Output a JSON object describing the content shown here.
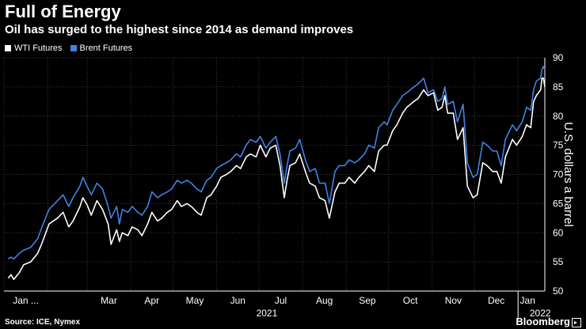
{
  "chart_data": {
    "type": "line",
    "title": "Full of Energy",
    "subtitle": "Oil has surged to the highest since 2014 as demand improves",
    "ylabel": "U.S. dollars a barrel",
    "ylim": [
      50,
      90
    ],
    "y_ticks": [
      "50",
      "55",
      "60",
      "65",
      "70",
      "75",
      "80",
      "85",
      "90"
    ],
    "xlim": [
      "2021-01-01",
      "2022-01-20"
    ],
    "x_ticks": [
      {
        "date": "2021-01-01",
        "label": "Jan ..."
      },
      {
        "date": "2021-02-01",
        "label": "Feb"
      },
      {
        "date": "2021-03-01",
        "label": "Mar"
      },
      {
        "date": "2021-04-01",
        "label": "Apr"
      },
      {
        "date": "2021-05-01",
        "label": "May"
      },
      {
        "date": "2021-06-01",
        "label": "Jun"
      },
      {
        "date": "2021-07-01",
        "label": "Jul"
      },
      {
        "date": "2021-08-01",
        "label": "Aug"
      },
      {
        "date": "2021-09-01",
        "label": "Sep"
      },
      {
        "date": "2021-10-01",
        "label": "Oct"
      },
      {
        "date": "2021-11-01",
        "label": "Nov"
      },
      {
        "date": "2021-12-01",
        "label": "Dec"
      },
      {
        "date": "2022-01-01",
        "label": "Jan"
      }
    ],
    "year_labels": [
      {
        "date": "2021-07-01",
        "label": "2021"
      },
      {
        "date": "2022-01-01",
        "label": "2022"
      }
    ],
    "grid": true,
    "legend_position": "top-left",
    "series": [
      {
        "name": "WTI Futures",
        "color": "#ffffff",
        "points": [
          [
            "2021-01-04",
            52.2
          ],
          [
            "2021-01-06",
            52.8
          ],
          [
            "2021-01-08",
            52.0
          ],
          [
            "2021-01-12",
            53.2
          ],
          [
            "2021-01-15",
            54.5
          ],
          [
            "2021-01-20",
            55.0
          ],
          [
            "2021-01-25",
            56.5
          ],
          [
            "2021-01-28",
            58.2
          ],
          [
            "2021-02-02",
            61.5
          ],
          [
            "2021-02-08",
            62.5
          ],
          [
            "2021-02-12",
            63.5
          ],
          [
            "2021-02-16",
            61.0
          ],
          [
            "2021-02-19",
            62.0
          ],
          [
            "2021-02-24",
            64.5
          ],
          [
            "2021-02-26",
            66.0
          ],
          [
            "2021-03-01",
            64.8
          ],
          [
            "2021-03-04",
            63.0
          ],
          [
            "2021-03-08",
            65.5
          ],
          [
            "2021-03-12",
            64.0
          ],
          [
            "2021-03-16",
            61.5
          ],
          [
            "2021-03-18",
            58.0
          ],
          [
            "2021-03-22",
            60.5
          ],
          [
            "2021-03-24",
            58.5
          ],
          [
            "2021-03-26",
            60.0
          ],
          [
            "2021-03-30",
            59.5
          ],
          [
            "2021-04-02",
            61.0
          ],
          [
            "2021-04-06",
            60.5
          ],
          [
            "2021-04-09",
            59.5
          ],
          [
            "2021-04-13",
            61.5
          ],
          [
            "2021-04-16",
            63.5
          ],
          [
            "2021-04-20",
            62.0
          ],
          [
            "2021-04-23",
            62.5
          ],
          [
            "2021-04-27",
            63.5
          ],
          [
            "2021-04-30",
            64.0
          ],
          [
            "2021-05-04",
            65.5
          ],
          [
            "2021-05-07",
            64.5
          ],
          [
            "2021-05-11",
            65.0
          ],
          [
            "2021-05-14",
            64.5
          ],
          [
            "2021-05-18",
            63.5
          ],
          [
            "2021-05-21",
            63.0
          ],
          [
            "2021-05-25",
            66.0
          ],
          [
            "2021-05-28",
            66.5
          ],
          [
            "2021-06-01",
            68.0
          ],
          [
            "2021-06-04",
            69.5
          ],
          [
            "2021-06-08",
            70.0
          ],
          [
            "2021-06-11",
            70.5
          ],
          [
            "2021-06-15",
            71.5
          ],
          [
            "2021-06-18",
            71.0
          ],
          [
            "2021-06-22",
            73.0
          ],
          [
            "2021-06-25",
            73.5
          ],
          [
            "2021-06-29",
            73.0
          ],
          [
            "2021-07-02",
            75.0
          ],
          [
            "2021-07-06",
            73.0
          ],
          [
            "2021-07-09",
            74.5
          ],
          [
            "2021-07-13",
            75.0
          ],
          [
            "2021-07-16",
            71.5
          ],
          [
            "2021-07-19",
            66.0
          ],
          [
            "2021-07-21",
            69.0
          ],
          [
            "2021-07-23",
            71.5
          ],
          [
            "2021-07-27",
            72.0
          ],
          [
            "2021-07-30",
            73.5
          ],
          [
            "2021-08-03",
            70.5
          ],
          [
            "2021-08-06",
            68.5
          ],
          [
            "2021-08-10",
            68.0
          ],
          [
            "2021-08-13",
            66.0
          ],
          [
            "2021-08-17",
            65.5
          ],
          [
            "2021-08-20",
            62.5
          ],
          [
            "2021-08-24",
            67.0
          ],
          [
            "2021-08-27",
            68.5
          ],
          [
            "2021-08-31",
            68.5
          ],
          [
            "2021-09-03",
            69.5
          ],
          [
            "2021-09-07",
            68.5
          ],
          [
            "2021-09-10",
            69.5
          ],
          [
            "2021-09-14",
            70.5
          ],
          [
            "2021-09-17",
            71.5
          ],
          [
            "2021-09-21",
            70.5
          ],
          [
            "2021-09-24",
            74.0
          ],
          [
            "2021-09-28",
            75.0
          ],
          [
            "2021-09-30",
            75.0
          ],
          [
            "2021-10-04",
            77.5
          ],
          [
            "2021-10-07",
            78.5
          ],
          [
            "2021-10-11",
            80.5
          ],
          [
            "2021-10-14",
            81.5
          ],
          [
            "2021-10-19",
            82.5
          ],
          [
            "2021-10-22",
            83.0
          ],
          [
            "2021-10-26",
            84.5
          ],
          [
            "2021-10-29",
            83.5
          ],
          [
            "2021-11-02",
            84.0
          ],
          [
            "2021-11-05",
            81.0
          ],
          [
            "2021-11-08",
            81.5
          ],
          [
            "2021-11-10",
            83.5
          ],
          [
            "2021-11-12",
            80.5
          ],
          [
            "2021-11-16",
            80.5
          ],
          [
            "2021-11-19",
            76.0
          ],
          [
            "2021-11-23",
            78.0
          ],
          [
            "2021-11-26",
            68.0
          ],
          [
            "2021-11-30",
            66.0
          ],
          [
            "2021-12-03",
            66.5
          ],
          [
            "2021-12-07",
            72.0
          ],
          [
            "2021-12-10",
            71.5
          ],
          [
            "2021-12-14",
            70.5
          ],
          [
            "2021-12-17",
            70.5
          ],
          [
            "2021-12-20",
            68.5
          ],
          [
            "2021-12-23",
            73.0
          ],
          [
            "2021-12-28",
            76.0
          ],
          [
            "2021-12-31",
            75.0
          ],
          [
            "2022-01-04",
            76.5
          ],
          [
            "2022-01-07",
            78.5
          ],
          [
            "2022-01-10",
            78.0
          ],
          [
            "2022-01-12",
            82.5
          ],
          [
            "2022-01-14",
            83.5
          ],
          [
            "2022-01-17",
            84.5
          ],
          [
            "2022-01-18",
            86.5
          ],
          [
            "2022-01-19",
            86.5
          ],
          [
            "2022-01-20",
            85.0
          ]
        ]
      },
      {
        "name": "Brent Futures",
        "color": "#3f84e5",
        "points": [
          [
            "2021-01-04",
            55.5
          ],
          [
            "2021-01-06",
            55.8
          ],
          [
            "2021-01-08",
            55.5
          ],
          [
            "2021-01-12",
            56.5
          ],
          [
            "2021-01-15",
            57.0
          ],
          [
            "2021-01-20",
            57.5
          ],
          [
            "2021-01-25",
            59.0
          ],
          [
            "2021-01-28",
            61.0
          ],
          [
            "2021-02-02",
            64.0
          ],
          [
            "2021-02-08",
            65.5
          ],
          [
            "2021-02-12",
            66.5
          ],
          [
            "2021-02-16",
            64.5
          ],
          [
            "2021-02-19",
            66.0
          ],
          [
            "2021-02-24",
            68.0
          ],
          [
            "2021-02-26",
            69.5
          ],
          [
            "2021-03-01",
            68.0
          ],
          [
            "2021-03-04",
            66.5
          ],
          [
            "2021-03-08",
            68.5
          ],
          [
            "2021-03-12",
            67.5
          ],
          [
            "2021-03-16",
            64.5
          ],
          [
            "2021-03-18",
            62.5
          ],
          [
            "2021-03-22",
            64.5
          ],
          [
            "2021-03-24",
            61.5
          ],
          [
            "2021-03-26",
            64.0
          ],
          [
            "2021-03-30",
            63.5
          ],
          [
            "2021-04-02",
            64.5
          ],
          [
            "2021-04-06",
            63.5
          ],
          [
            "2021-04-09",
            63.0
          ],
          [
            "2021-04-13",
            64.5
          ],
          [
            "2021-04-16",
            67.0
          ],
          [
            "2021-04-20",
            66.0
          ],
          [
            "2021-04-23",
            66.5
          ],
          [
            "2021-04-27",
            67.0
          ],
          [
            "2021-04-30",
            67.5
          ],
          [
            "2021-05-04",
            69.0
          ],
          [
            "2021-05-07",
            68.5
          ],
          [
            "2021-05-11",
            69.0
          ],
          [
            "2021-05-14",
            68.5
          ],
          [
            "2021-05-18",
            67.5
          ],
          [
            "2021-05-21",
            67.0
          ],
          [
            "2021-05-25",
            69.0
          ],
          [
            "2021-05-28",
            69.5
          ],
          [
            "2021-06-01",
            71.0
          ],
          [
            "2021-06-04",
            71.5
          ],
          [
            "2021-06-08",
            72.0
          ],
          [
            "2021-06-11",
            72.5
          ],
          [
            "2021-06-15",
            73.5
          ],
          [
            "2021-06-18",
            73.0
          ],
          [
            "2021-06-22",
            75.0
          ],
          [
            "2021-06-25",
            76.0
          ],
          [
            "2021-06-29",
            75.5
          ],
          [
            "2021-07-02",
            76.5
          ],
          [
            "2021-07-06",
            74.5
          ],
          [
            "2021-07-09",
            75.5
          ],
          [
            "2021-07-13",
            76.5
          ],
          [
            "2021-07-16",
            73.5
          ],
          [
            "2021-07-19",
            68.5
          ],
          [
            "2021-07-21",
            71.5
          ],
          [
            "2021-07-23",
            74.0
          ],
          [
            "2021-07-27",
            74.5
          ],
          [
            "2021-07-30",
            76.0
          ],
          [
            "2021-08-03",
            72.5
          ],
          [
            "2021-08-06",
            70.5
          ],
          [
            "2021-08-10",
            71.0
          ],
          [
            "2021-08-13",
            68.5
          ],
          [
            "2021-08-17",
            68.5
          ],
          [
            "2021-08-20",
            65.0
          ],
          [
            "2021-08-24",
            70.5
          ],
          [
            "2021-08-27",
            71.5
          ],
          [
            "2021-08-31",
            71.5
          ],
          [
            "2021-09-03",
            72.5
          ],
          [
            "2021-09-07",
            72.0
          ],
          [
            "2021-09-10",
            72.5
          ],
          [
            "2021-09-14",
            73.5
          ],
          [
            "2021-09-17",
            75.0
          ],
          [
            "2021-09-21",
            74.5
          ],
          [
            "2021-09-24",
            78.0
          ],
          [
            "2021-09-28",
            79.0
          ],
          [
            "2021-09-30",
            78.5
          ],
          [
            "2021-10-04",
            81.0
          ],
          [
            "2021-10-07",
            82.0
          ],
          [
            "2021-10-11",
            83.5
          ],
          [
            "2021-10-14",
            84.0
          ],
          [
            "2021-10-19",
            85.0
          ],
          [
            "2021-10-22",
            85.5
          ],
          [
            "2021-10-26",
            86.5
          ],
          [
            "2021-10-29",
            84.0
          ],
          [
            "2021-11-02",
            84.5
          ],
          [
            "2021-11-05",
            82.5
          ],
          [
            "2021-11-08",
            83.0
          ],
          [
            "2021-11-10",
            85.0
          ],
          [
            "2021-11-12",
            82.0
          ],
          [
            "2021-11-16",
            82.5
          ],
          [
            "2021-11-19",
            79.0
          ],
          [
            "2021-11-23",
            82.0
          ],
          [
            "2021-11-26",
            72.0
          ],
          [
            "2021-11-30",
            69.5
          ],
          [
            "2021-12-03",
            70.0
          ],
          [
            "2021-12-07",
            75.5
          ],
          [
            "2021-12-10",
            75.0
          ],
          [
            "2021-12-14",
            74.0
          ],
          [
            "2021-12-17",
            74.0
          ],
          [
            "2021-12-20",
            71.5
          ],
          [
            "2021-12-23",
            76.0
          ],
          [
            "2021-12-28",
            78.5
          ],
          [
            "2021-12-31",
            77.5
          ],
          [
            "2022-01-04",
            79.0
          ],
          [
            "2022-01-07",
            81.5
          ],
          [
            "2022-01-10",
            81.0
          ],
          [
            "2022-01-12",
            84.5
          ],
          [
            "2022-01-14",
            86.0
          ],
          [
            "2022-01-17",
            86.5
          ],
          [
            "2022-01-18",
            88.0
          ],
          [
            "2022-01-19",
            88.5
          ],
          [
            "2022-01-20",
            88.0
          ]
        ]
      }
    ]
  },
  "footer": {
    "source": "Source: ICE, Nymex",
    "brand": "Bloomberg"
  }
}
